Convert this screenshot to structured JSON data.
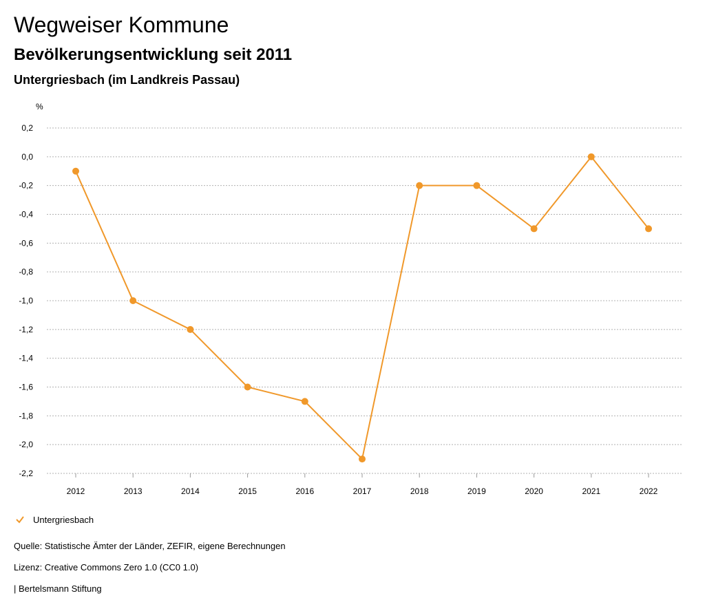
{
  "header": {
    "title": "Wegweiser Kommune",
    "subtitle": "Bevölkerungsentwicklung seit 2011",
    "region": "Untergriesbach (im Landkreis Passau)"
  },
  "chart_data": {
    "type": "line",
    "ylabel": "%",
    "ylim": [
      -2.2,
      0.2
    ],
    "yticks": [
      "0,2",
      "0,0",
      "-0,2",
      "-0,4",
      "-0,6",
      "-0,8",
      "-1,0",
      "-1,2",
      "-1,4",
      "-1,6",
      "-1,8",
      "-2,0",
      "-2,2"
    ],
    "ytick_values": [
      0.2,
      0.0,
      -0.2,
      -0.4,
      -0.6,
      -0.8,
      -1.0,
      -1.2,
      -1.4,
      -1.6,
      -1.8,
      -2.0,
      -2.2
    ],
    "categories": [
      "2012",
      "2013",
      "2014",
      "2015",
      "2016",
      "2017",
      "2018",
      "2019",
      "2020",
      "2021",
      "2022"
    ],
    "series": [
      {
        "name": "Untergriesbach",
        "values": [
          -0.1,
          -1.0,
          -1.2,
          -1.6,
          -1.7,
          -2.1,
          -0.2,
          -0.2,
          -0.5,
          0.0,
          -0.5
        ],
        "color": "#f0982a"
      }
    ],
    "grid": true,
    "legend_position": "bottom-left"
  },
  "legend": {
    "label": "Untergriesbach",
    "icon": "check-icon"
  },
  "footer": {
    "source": "Quelle: Statistische Ämter der Länder, ZEFIR, eigene Berechnungen",
    "license": "Lizenz: Creative Commons Zero 1.0 (CC0 1.0)",
    "publisher": "| Bertelsmann Stiftung"
  }
}
